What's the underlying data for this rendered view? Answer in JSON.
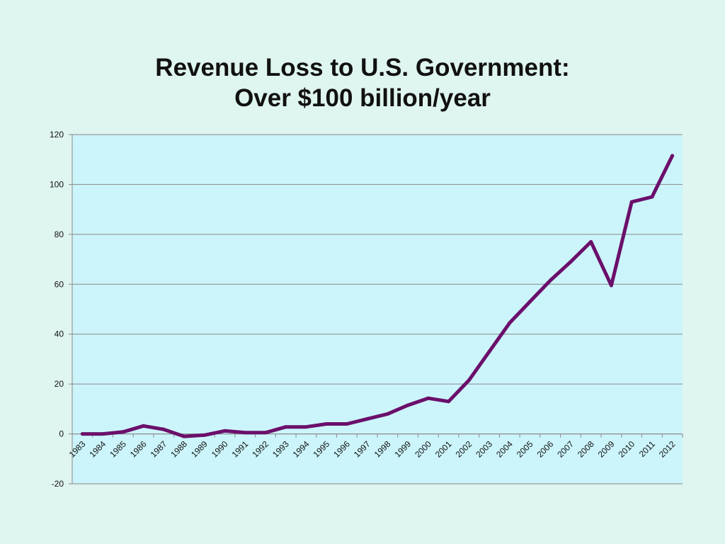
{
  "title_line1": "Revenue Loss to U.S. Government:",
  "title_line2": "Over $100 billion/year",
  "colors": {
    "background": "#dff5ef",
    "plot_area": "#ccf5fb",
    "line": "#6b0f6b",
    "grid": "#888888"
  },
  "chart_data": {
    "type": "line",
    "title": "Revenue Loss to U.S. Government: Over $100 billion/year",
    "xlabel": "",
    "ylabel": "",
    "ylim": [
      -20,
      120
    ],
    "yticks": [
      -20,
      0,
      20,
      40,
      60,
      80,
      100,
      120
    ],
    "grid": true,
    "legend": "none",
    "categories": [
      "1983",
      "1984",
      "1985",
      "1986",
      "1987",
      "1988",
      "1989",
      "1990",
      "1991",
      "1992",
      "1993",
      "1994",
      "1995",
      "1996",
      "1997",
      "1998",
      "1999",
      "2000",
      "2001",
      "2002",
      "2003",
      "2004",
      "2005",
      "2006",
      "2007",
      "2008",
      "2009",
      "2010",
      "2011",
      "2012"
    ],
    "series": [
      {
        "values": [
          0,
          0,
          0.8,
          3.2,
          1.8,
          -1,
          -0.5,
          1.2,
          0.5,
          0.5,
          2.8,
          2.8,
          4,
          4,
          6,
          8,
          11.5,
          14.3,
          13,
          21.5,
          33,
          44.5,
          53,
          61.5,
          69,
          77,
          59.5,
          93,
          95,
          111.5
        ]
      }
    ]
  }
}
